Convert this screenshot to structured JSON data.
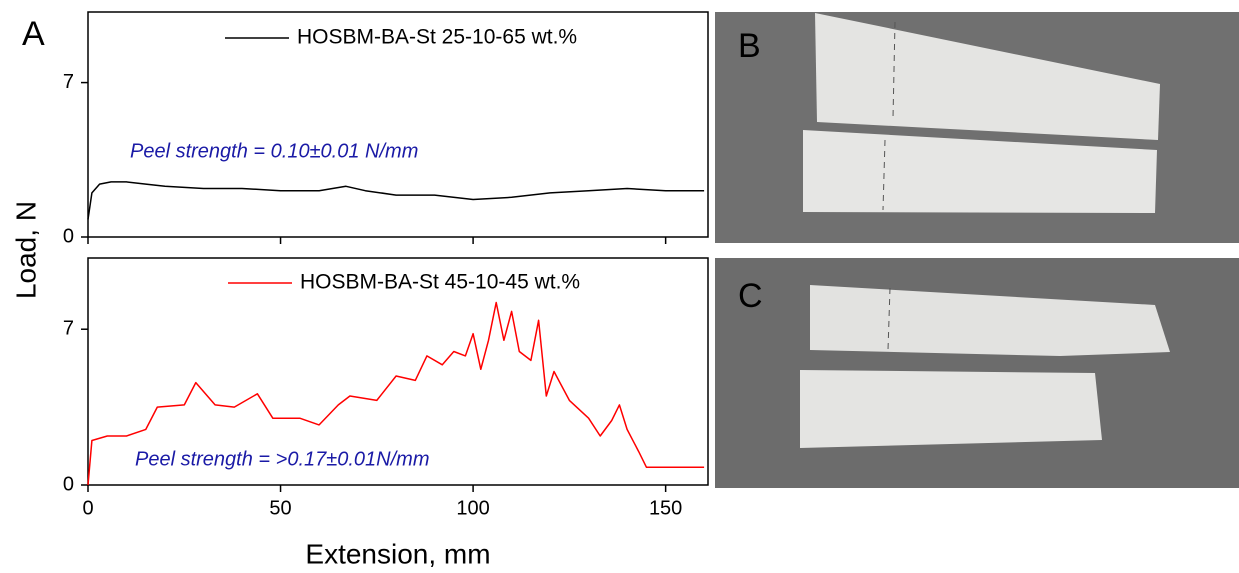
{
  "figure": {
    "y_label": "Load, N",
    "x_label": "Extension, mm",
    "panel_labels": [
      "A",
      "B",
      "C"
    ]
  },
  "chart_data": [
    {
      "type": "line",
      "annotation": "Peel strength = 0.10±0.01 N/mm",
      "xlim": [
        0,
        161
      ],
      "xticks": [
        0,
        50,
        100,
        150
      ],
      "ylim": [
        0,
        10.2
      ],
      "yticks": [
        0,
        7
      ],
      "series": [
        {
          "name": "HOSBM-BA-St 25-10-65 wt.%",
          "color": "#000000",
          "x": [
            0,
            1,
            3,
            6,
            10,
            15,
            20,
            30,
            40,
            50,
            60,
            67,
            72,
            80,
            90,
            100,
            110,
            120,
            130,
            140,
            150,
            160
          ],
          "values": [
            0.8,
            2.0,
            2.4,
            2.5,
            2.5,
            2.4,
            2.3,
            2.2,
            2.2,
            2.1,
            2.1,
            2.3,
            2.1,
            1.9,
            1.9,
            1.7,
            1.8,
            2.0,
            2.1,
            2.2,
            2.1,
            2.1
          ]
        }
      ]
    },
    {
      "type": "line",
      "annotation": "Peel strength = >0.17±0.01N/mm",
      "xlim": [
        0,
        161
      ],
      "xticks": [
        0,
        50,
        100,
        150
      ],
      "ylim": [
        0,
        10.2
      ],
      "yticks": [
        0,
        7
      ],
      "series": [
        {
          "name": "HOSBM-BA-St 45-10-45 wt.%",
          "color": "#ff0000",
          "x": [
            0,
            1,
            5,
            10,
            15,
            18,
            25,
            28,
            33,
            38,
            44,
            48,
            55,
            60,
            65,
            68,
            75,
            80,
            85,
            88,
            92,
            95,
            98,
            100,
            102,
            104,
            106,
            108,
            110,
            112,
            115,
            117,
            119,
            121,
            125,
            130,
            133,
            136,
            138,
            140,
            143,
            145,
            150,
            155,
            160
          ],
          "values": [
            0,
            2.0,
            2.2,
            2.2,
            2.5,
            3.5,
            3.6,
            4.6,
            3.6,
            3.5,
            4.1,
            3.0,
            3.0,
            2.7,
            3.6,
            4.0,
            3.8,
            4.9,
            4.7,
            5.8,
            5.4,
            6.0,
            5.8,
            6.8,
            5.2,
            6.5,
            8.2,
            6.5,
            7.8,
            6.0,
            5.6,
            7.4,
            4.0,
            5.1,
            3.8,
            3.0,
            2.2,
            2.9,
            3.6,
            2.5,
            1.5,
            0.8,
            0.8,
            0.8,
            0.8
          ]
        }
      ]
    }
  ]
}
